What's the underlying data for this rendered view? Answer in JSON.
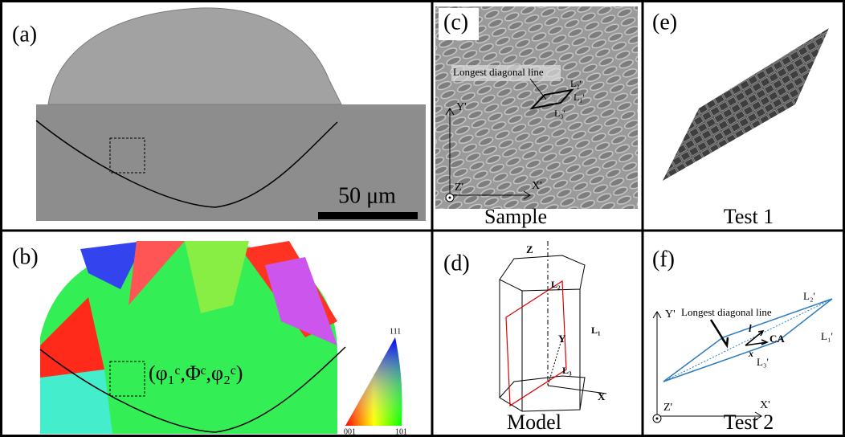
{
  "panels": {
    "a": {
      "label": "(a)",
      "scale_bar": "50 μm"
    },
    "b": {
      "label": "(b)",
      "annotation": "(φ₁ᶜ,Φᶜ,φ₂ᶜ)",
      "ipf_labels": [
        "111",
        "001",
        "101"
      ]
    },
    "c": {
      "label": "(c)",
      "callout": "Longest diagonal line",
      "edges": [
        "L₂'",
        "L₁'",
        "L₃'"
      ],
      "axes": [
        "Y'",
        "X'",
        "Z'"
      ],
      "caption": "Sample"
    },
    "d": {
      "label": "(d)",
      "edges": [
        "L₂",
        "L₁",
        "L₃"
      ],
      "axes": [
        "Z",
        "Y",
        "X"
      ],
      "caption": "Model"
    },
    "e": {
      "label": "(e)",
      "caption": "Test 1"
    },
    "f": {
      "label": "(f)",
      "callout": "Longest diagonal line",
      "edges": [
        "L₂'",
        "L₁'",
        "L₃'"
      ],
      "vectors": [
        "l",
        "x",
        "CA"
      ],
      "axes": [
        "Y'",
        "X'",
        "Z'"
      ],
      "caption": "Test 2"
    }
  }
}
